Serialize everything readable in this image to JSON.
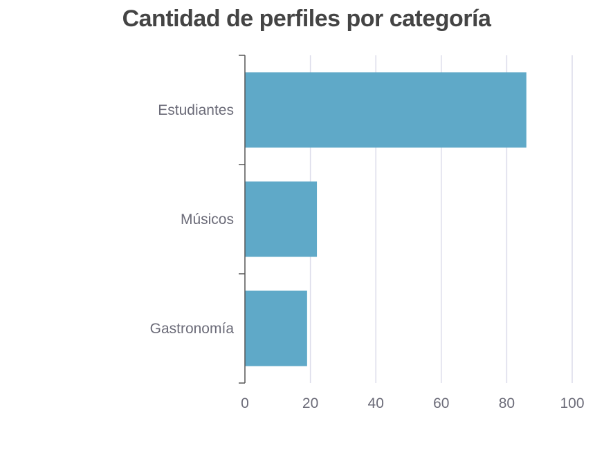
{
  "chart_data": {
    "type": "bar",
    "orientation": "horizontal",
    "title": "Cantidad de perfiles por categoría",
    "categories": [
      "Estudiantes",
      "Músicos",
      "Gastronomía"
    ],
    "values": [
      86,
      22,
      19
    ],
    "xlim": [
      0,
      100
    ],
    "xticks": [
      0,
      20,
      40,
      60,
      80,
      100
    ],
    "xlabel": "",
    "ylabel": "",
    "grid": true,
    "legend": "none",
    "colors": {
      "bar": "#5fa9c8",
      "grid": "#dcdcea",
      "axis": "#555555",
      "text": "#6b6b78",
      "title": "#444444"
    }
  }
}
